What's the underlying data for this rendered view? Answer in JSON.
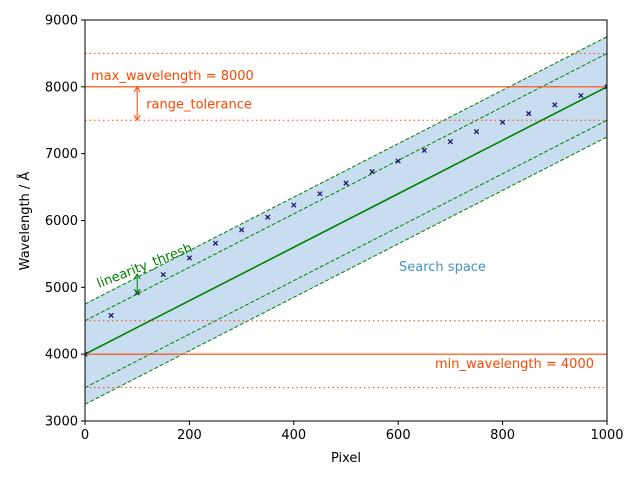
{
  "chart_data": {
    "type": "scatter",
    "xlabel": "Pixel",
    "ylabel": "Wavelength / Å",
    "xlim": [
      0,
      1000
    ],
    "ylim": [
      3000,
      9000
    ],
    "xticks": [
      0,
      200,
      400,
      600,
      800,
      1000
    ],
    "yticks": [
      3000,
      4000,
      5000,
      6000,
      7000,
      8000,
      9000
    ],
    "points": {
      "x": [
        0,
        50,
        100,
        150,
        200,
        250,
        300,
        350,
        400,
        450,
        500,
        550,
        600,
        650,
        700,
        750,
        800,
        850,
        900,
        950,
        1000
      ],
      "y": [
        4000,
        4580,
        4920,
        5190,
        5440,
        5660,
        5860,
        6050,
        6230,
        6400,
        6560,
        6730,
        6890,
        7050,
        7180,
        7330,
        7470,
        7600,
        7730,
        7870,
        8000
      ],
      "color": "#191970"
    },
    "fit_line": {
      "from": [
        0,
        4000
      ],
      "to": [
        1000,
        8000
      ],
      "color": "#008000"
    },
    "linearity_offsets": [
      500,
      -500
    ],
    "search_band": {
      "offset": 750,
      "color": "#c6dbef",
      "edge_color": "#008000"
    },
    "max_wavelength": 8000,
    "min_wavelength": 4000,
    "range_tolerance": 500,
    "threshold_color": "#ff4500",
    "annotations": {
      "max_label": "max_wavelength = 8000",
      "min_label": "min_wavelength = 4000",
      "range_label": "range_tolerance",
      "linearity_label": "linearity_thresh",
      "search_label": "Search space"
    },
    "range_arrow": {
      "x": 100,
      "y_from": 7500,
      "y_to": 8000
    },
    "linearity_arrow": {
      "x": 100,
      "y_from": 4900,
      "y_to": 5200
    }
  }
}
